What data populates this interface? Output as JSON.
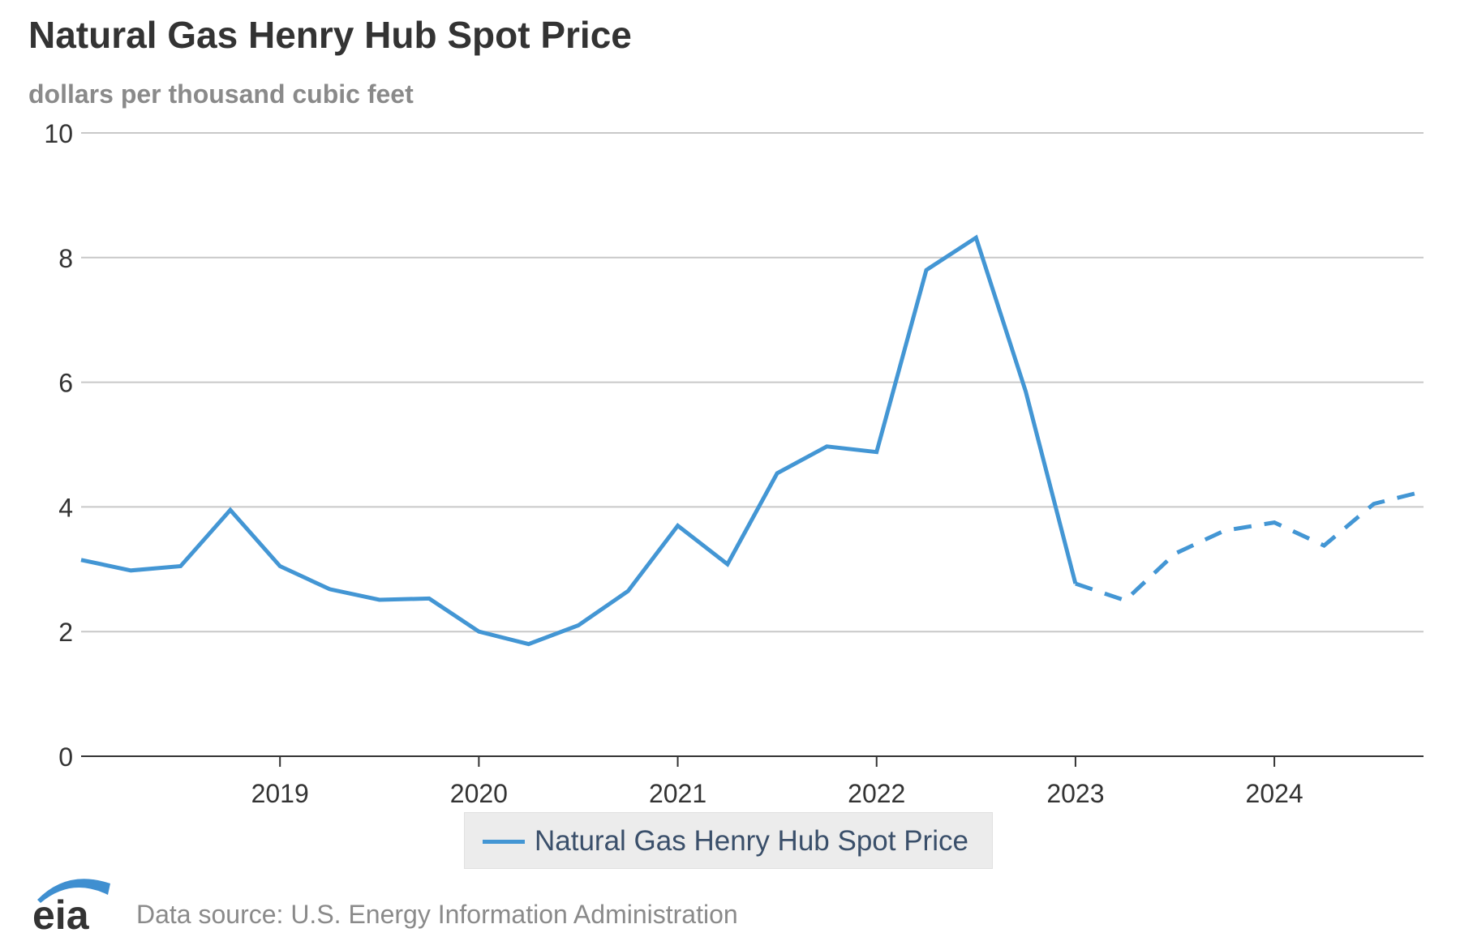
{
  "header": {
    "title": "Natural Gas Henry Hub Spot Price",
    "subtitle": "dollars per thousand cubic feet"
  },
  "legend": {
    "label": "Natural Gas Henry Hub Spot Price"
  },
  "footer": {
    "logo_text": "eia",
    "source": "Data source: U.S. Energy Information Administration"
  },
  "colors": {
    "series": "#4396d4",
    "grid": "#c8c8c8",
    "axis": "#333333"
  },
  "chart_data": {
    "type": "line",
    "title": "Natural Gas Henry Hub Spot Price",
    "subtitle": "dollars per thousand cubic feet",
    "xlabel": "",
    "ylabel": "",
    "xlim": [
      2018.0,
      2024.75
    ],
    "ylim": [
      0,
      10
    ],
    "yticks": [
      0,
      2,
      4,
      6,
      8,
      10
    ],
    "xticks": [
      "2019",
      "2020",
      "2021",
      "2022",
      "2023",
      "2024"
    ],
    "grid": true,
    "legend_position": "bottom",
    "series": [
      {
        "name": "Natural Gas Henry Hub Spot Price",
        "color": "#4396d4",
        "x": [
          "2018-Q1",
          "2018-Q2",
          "2018-Q3",
          "2018-Q4",
          "2019-Q1",
          "2019-Q2",
          "2019-Q3",
          "2019-Q4",
          "2020-Q1",
          "2020-Q2",
          "2020-Q3",
          "2020-Q4",
          "2021-Q1",
          "2021-Q2",
          "2021-Q3",
          "2021-Q4",
          "2022-Q1",
          "2022-Q2",
          "2022-Q3",
          "2022-Q4",
          "2023-Q1",
          "2023-Q2",
          "2023-Q3",
          "2023-Q4",
          "2024-Q1",
          "2024-Q2",
          "2024-Q3",
          "2024-Q4"
        ],
        "values": [
          3.15,
          2.98,
          3.05,
          3.95,
          3.05,
          2.68,
          2.51,
          2.53,
          2.0,
          1.8,
          2.1,
          2.65,
          3.7,
          3.08,
          4.54,
          4.97,
          4.88,
          7.8,
          8.32,
          5.85,
          2.77,
          2.5,
          3.25,
          3.62,
          3.75,
          3.38,
          4.05,
          4.25
        ],
        "forecast_from": "2023-Q1",
        "style_actual": "solid",
        "style_forecast": "dashed"
      }
    ]
  }
}
